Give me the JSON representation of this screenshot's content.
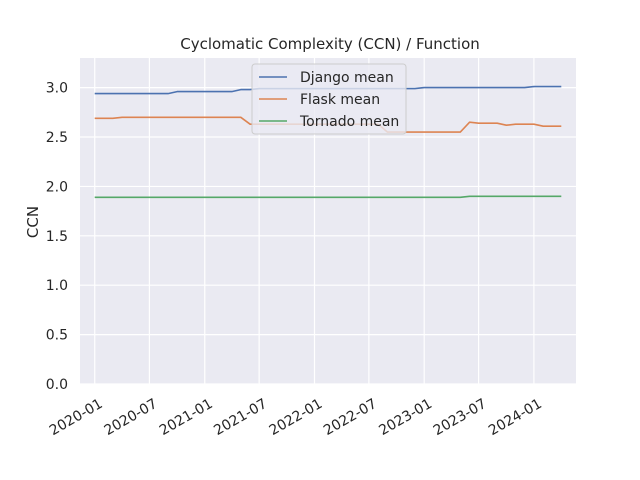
{
  "chart_data": {
    "type": "line",
    "title": "Cyclomatic Complexity (CCN) / Function",
    "xlabel": "",
    "ylabel": "CCN",
    "ylim": [
      0,
      3.3
    ],
    "xlim": [
      "2019-11-13",
      "2024-05-20"
    ],
    "x_ticks": [
      "2020-01",
      "2020-07",
      "2021-01",
      "2021-07",
      "2022-01",
      "2022-07",
      "2023-01",
      "2023-07",
      "2024-01"
    ],
    "y_ticks": [
      "0.0",
      "0.5",
      "1.0",
      "1.5",
      "2.0",
      "2.5",
      "3.0"
    ],
    "grid": true,
    "legend_placement": "upper-center",
    "background": "#eaeaf2",
    "series": [
      {
        "name": "Django mean",
        "color": "#4c72b0",
        "points": [
          [
            "2020-01-01",
            2.94
          ],
          [
            "2020-09-01",
            2.94
          ],
          [
            "2020-10-01",
            2.96
          ],
          [
            "2021-04-01",
            2.96
          ],
          [
            "2021-05-01",
            2.98
          ],
          [
            "2021-06-01",
            2.98
          ],
          [
            "2021-07-01",
            2.99
          ],
          [
            "2022-12-01",
            2.99
          ],
          [
            "2023-01-01",
            3.0
          ],
          [
            "2023-12-01",
            3.0
          ],
          [
            "2024-01-01",
            3.01
          ],
          [
            "2024-04-01",
            3.01
          ]
        ]
      },
      {
        "name": "Flask mean",
        "color": "#dd8452",
        "points": [
          [
            "2020-01-01",
            2.69
          ],
          [
            "2020-03-01",
            2.69
          ],
          [
            "2020-04-01",
            2.7
          ],
          [
            "2021-05-01",
            2.7
          ],
          [
            "2021-06-01",
            2.63
          ],
          [
            "2022-08-01",
            2.63
          ],
          [
            "2022-09-01",
            2.55
          ],
          [
            "2023-05-01",
            2.55
          ],
          [
            "2023-06-01",
            2.65
          ],
          [
            "2023-07-01",
            2.64
          ],
          [
            "2023-09-01",
            2.64
          ],
          [
            "2023-10-01",
            2.62
          ],
          [
            "2023-11-01",
            2.63
          ],
          [
            "2024-01-01",
            2.63
          ],
          [
            "2024-02-01",
            2.61
          ],
          [
            "2024-04-01",
            2.61
          ]
        ]
      },
      {
        "name": "Tornado mean",
        "color": "#55a868",
        "points": [
          [
            "2020-01-01",
            1.89
          ],
          [
            "2023-05-01",
            1.89
          ],
          [
            "2023-06-01",
            1.9
          ],
          [
            "2024-04-01",
            1.9
          ]
        ]
      }
    ]
  }
}
